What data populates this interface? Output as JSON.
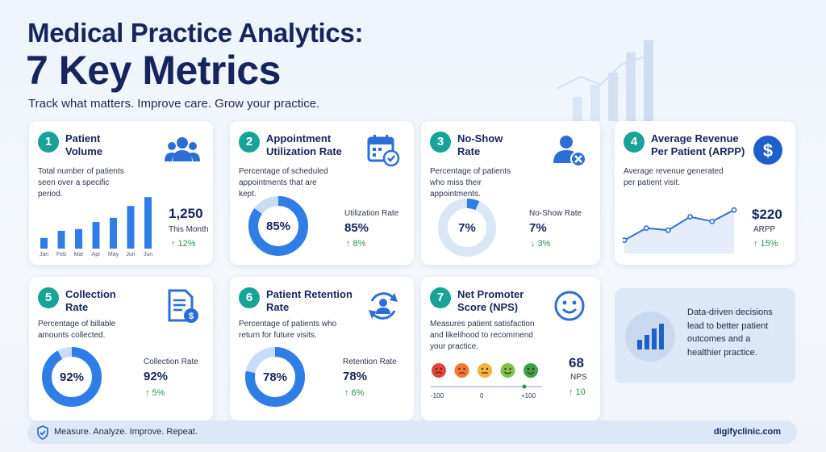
{
  "header": {
    "title_line1": "Medical Practice Analytics:",
    "title_line2": "7 Key Metrics",
    "subtitle": "Track what matters. Improve care. Grow your practice."
  },
  "colors": {
    "teal": "#17a398",
    "blue": "#2b7de9",
    "navy": "#16255c",
    "light_blue": "#dde8f6",
    "green": "#1e9a4a"
  },
  "cards": [
    {
      "number": "1",
      "title": "Patient Volume",
      "icon": "users-group-icon",
      "description": "Total number of patients seen over a specific period.",
      "value": "1,250",
      "label": "This Month",
      "change": "↑ 12%",
      "chart": {
        "categories": [
          "Jan",
          "Feb",
          "Mar",
          "Apr",
          "May",
          "Jun",
          "Jun"
        ],
        "values": [
          18,
          30,
          33,
          45,
          52,
          72,
          87
        ]
      }
    },
    {
      "number": "2",
      "title": "Appointment Utilization Rate",
      "icon": "calendar-check-icon",
      "description": "Percentage of scheduled appointments that are kept.",
      "center": "85%",
      "label": "Utilization Rate",
      "value": "85%",
      "change": "↑ 8%",
      "fraction": 0.85
    },
    {
      "number": "3",
      "title": "No-Show Rate",
      "icon": "user-remove-icon",
      "description": "Percentage of patients who miss their appointments.",
      "center": "7%",
      "label": "No-Show Rate",
      "value": "7%",
      "change": "↓ 3%",
      "fraction": 0.07
    },
    {
      "number": "4",
      "title": "Average Revenue Per Patient (ARPP)",
      "icon": "dollar-coin-icon",
      "description": "Average revenue generated per patient visit.",
      "value": "$220",
      "label": "ARPP",
      "change": "↑ 15%",
      "chart": {
        "values": [
          10,
          28,
          25,
          45,
          38,
          55
        ]
      }
    },
    {
      "number": "5",
      "title": "Collection Rate",
      "icon": "invoice-dollar-icon",
      "description": "Percentage of billable amounts collected.",
      "center": "92%",
      "label": "Collection Rate",
      "value": "92%",
      "change": "↑ 5%",
      "fraction": 0.92
    },
    {
      "number": "6",
      "title": "Patient Retention Rate",
      "icon": "user-refresh-icon",
      "description": "Percentage of patients who return for future visits.",
      "center": "78%",
      "label": "Retention Rate",
      "value": "78%",
      "change": "↑ 6%",
      "fraction": 0.78
    },
    {
      "number": "7",
      "title": "Net Promoter Score (NPS)",
      "icon": "smiley-icon",
      "description": "Measures patient satisfaction and likelihood to recommend your practice.",
      "value": "68",
      "label": "NPS",
      "change": "↑ 10",
      "scale": {
        "min": "-100",
        "mid": "0",
        "max": "+100",
        "score": 68
      },
      "face_colors": [
        "#e0463c",
        "#f07a35",
        "#f2b43a",
        "#7cc24a",
        "#3aa34a"
      ]
    }
  ],
  "side_note": "Data-driven decisions lead to better patient outcomes and a healthier practice.",
  "footer": {
    "tagline": "Measure. Analyze. Improve. Repeat.",
    "url": "digifyclinic.com"
  }
}
